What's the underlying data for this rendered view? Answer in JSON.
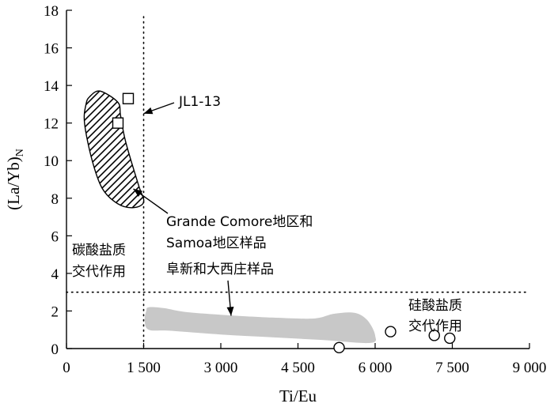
{
  "chart_data": {
    "type": "scatter",
    "xlabel": "Ti/Eu",
    "ylabel": "(La/Yb)N",
    "ylabel_main": "(La/Yb)",
    "ylabel_sub": "N",
    "xlim": [
      0,
      9000
    ],
    "ylim": [
      0,
      18
    ],
    "x_ticks": [
      {
        "value": 0,
        "label": "0"
      },
      {
        "value": 1500,
        "label": "1 500"
      },
      {
        "value": 3000,
        "label": "3 000"
      },
      {
        "value": 4500,
        "label": "4 500"
      },
      {
        "value": 6000,
        "label": "6 000"
      },
      {
        "value": 7500,
        "label": "7 500"
      },
      {
        "value": 9000,
        "label": "9 000"
      }
    ],
    "y_ticks": [
      {
        "value": 0,
        "label": "0"
      },
      {
        "value": 2,
        "label": "2"
      },
      {
        "value": 4,
        "label": "4"
      },
      {
        "value": 6,
        "label": "6"
      },
      {
        "value": 8,
        "label": "8"
      },
      {
        "value": 10,
        "label": "10"
      },
      {
        "value": 12,
        "label": "12"
      },
      {
        "value": 14,
        "label": "14"
      },
      {
        "value": 16,
        "label": "16"
      },
      {
        "value": 18,
        "label": "18"
      }
    ],
    "reference_lines": [
      {
        "orientation": "vertical",
        "value": 1500
      },
      {
        "orientation": "horizontal",
        "value": 3
      }
    ],
    "series": [
      {
        "marker": "square",
        "points": [
          {
            "x": 1200,
            "y": 13.3
          },
          {
            "x": 1000,
            "y": 12.0
          }
        ]
      },
      {
        "marker": "circle",
        "points": [
          {
            "x": 5300,
            "y": 0.05
          },
          {
            "x": 6300,
            "y": 0.9
          },
          {
            "x": 7150,
            "y": 0.7
          },
          {
            "x": 7450,
            "y": 0.55
          }
        ]
      }
    ],
    "fields": [
      {
        "style": "hatched",
        "outline": [
          [
            450,
            13.4
          ],
          [
            650,
            13.7
          ],
          [
            1000,
            13.1
          ],
          [
            1050,
            12.4
          ],
          [
            1150,
            11.0
          ],
          [
            1400,
            8.7
          ],
          [
            1500,
            7.8
          ],
          [
            1300,
            7.5
          ],
          [
            1000,
            7.7
          ],
          [
            700,
            8.5
          ],
          [
            500,
            10.0
          ],
          [
            350,
            12.0
          ],
          [
            380,
            13.0
          ]
        ]
      },
      {
        "style": "grey",
        "outline": [
          [
            1600,
            2.2
          ],
          [
            1900,
            2.15
          ],
          [
            2300,
            1.95
          ],
          [
            3000,
            1.8
          ],
          [
            4000,
            1.65
          ],
          [
            4800,
            1.6
          ],
          [
            5200,
            1.85
          ],
          [
            5600,
            1.9
          ],
          [
            5850,
            1.5
          ],
          [
            6000,
            0.7
          ],
          [
            5900,
            0.3
          ],
          [
            5000,
            0.45
          ],
          [
            4000,
            0.6
          ],
          [
            3000,
            0.75
          ],
          [
            2000,
            0.95
          ],
          [
            1600,
            1.0
          ],
          [
            1520,
            1.5
          ],
          [
            1550,
            2.0
          ]
        ]
      }
    ],
    "annotations": [
      {
        "id": "jl",
        "text": "JL1-13",
        "arrow_to": {
          "x": 1500,
          "y": 12.5
        }
      },
      {
        "id": "grande_1",
        "text": "Grande Comore地区和",
        "arrow_to": {
          "x": 1300,
          "y": 8.5
        }
      },
      {
        "id": "grande_2",
        "text": "Samoa地区样品"
      },
      {
        "id": "fuxin",
        "text": "阜新和大西庄样品",
        "arrow_to": {
          "x": 3200,
          "y": 1.75
        }
      },
      {
        "id": "carb_1",
        "text": "碳酸盐质"
      },
      {
        "id": "carb_2",
        "text": "交代作用"
      },
      {
        "id": "sil_1",
        "text": "硅酸盐质"
      },
      {
        "id": "sil_2",
        "text": "交代作用"
      }
    ]
  }
}
